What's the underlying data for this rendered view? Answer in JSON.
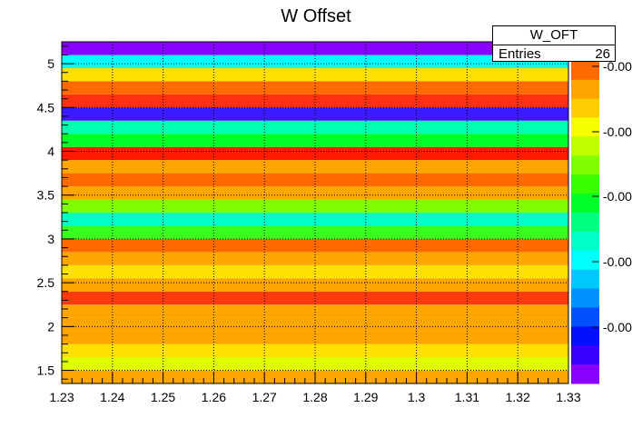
{
  "chart_data": {
    "type": "heatmap",
    "title": "W Offset",
    "x_range": [
      1.23,
      1.33
    ],
    "y_range": [
      1.35,
      5.25
    ],
    "x_ticks": [
      "1.23",
      "1.24",
      "1.25",
      "1.26",
      "1.27",
      "1.28",
      "1.29",
      "1.3",
      "1.31",
      "1.32",
      "1.33"
    ],
    "y_ticks": [
      "1.5",
      "2",
      "2.5",
      "3",
      "3.5",
      "4",
      "4.5",
      "5"
    ],
    "y_tick_values": [
      1.5,
      2,
      2.5,
      3,
      3.5,
      4,
      4.5,
      5
    ],
    "grid": true,
    "rows": [
      {
        "y": [
          1.35,
          1.5
        ],
        "color": "#ffa500"
      },
      {
        "y": [
          1.5,
          1.65
        ],
        "color": "#dfff00"
      },
      {
        "y": [
          1.65,
          1.8
        ],
        "color": "#ffe000"
      },
      {
        "y": [
          1.8,
          1.95
        ],
        "color": "#ffa500"
      },
      {
        "y": [
          1.95,
          2.1
        ],
        "color": "#ffa500"
      },
      {
        "y": [
          2.1,
          2.25
        ],
        "color": "#ffa500"
      },
      {
        "y": [
          2.25,
          2.4
        ],
        "color": "#ff3a10"
      },
      {
        "y": [
          2.4,
          2.55
        ],
        "color": "#ffa500"
      },
      {
        "y": [
          2.55,
          2.7
        ],
        "color": "#ffe000"
      },
      {
        "y": [
          2.7,
          2.85
        ],
        "color": "#ffa500"
      },
      {
        "y": [
          2.85,
          3.0
        ],
        "color": "#ff6a00"
      },
      {
        "y": [
          3.0,
          3.15
        ],
        "color": "#38ff20"
      },
      {
        "y": [
          3.15,
          3.3
        ],
        "color": "#00ffc8"
      },
      {
        "y": [
          3.3,
          3.45
        ],
        "color": "#80ff00"
      },
      {
        "y": [
          3.45,
          3.6
        ],
        "color": "#ffa500"
      },
      {
        "y": [
          3.6,
          3.75
        ],
        "color": "#ff6a00"
      },
      {
        "y": [
          3.75,
          3.9
        ],
        "color": "#ffa500"
      },
      {
        "y": [
          3.9,
          4.05
        ],
        "color": "#ff1a00"
      },
      {
        "y": [
          4.05,
          4.2
        ],
        "color": "#00ff28"
      },
      {
        "y": [
          4.2,
          4.35
        ],
        "color": "#00ffb0"
      },
      {
        "y": [
          4.35,
          4.5
        ],
        "color": "#3a1aff"
      },
      {
        "y": [
          4.5,
          4.65
        ],
        "color": "#ff3010"
      },
      {
        "y": [
          4.65,
          4.8
        ],
        "color": "#ff6a00"
      },
      {
        "y": [
          4.8,
          4.95
        ],
        "color": "#ffe000"
      },
      {
        "y": [
          4.95,
          5.1
        ],
        "color": "#00ffff"
      },
      {
        "y": [
          5.1,
          5.25
        ],
        "color": "#8a00ff"
      }
    ],
    "palette_top_to_bottom": [
      "#ff2a00",
      "#ff6a00",
      "#ffa500",
      "#ffce00",
      "#f5ff00",
      "#bfff00",
      "#80ff00",
      "#3aff00",
      "#00ff28",
      "#00ff80",
      "#00ffc8",
      "#00ffff",
      "#00c8ff",
      "#0090ff",
      "#0050ff",
      "#0010ff",
      "#3a00ff",
      "#8a00ff"
    ],
    "palette_labels": [
      "-0.00",
      "-0.00",
      "-0.00",
      "-0.00",
      "-0.00"
    ]
  },
  "stats": {
    "name": "W_OFT",
    "entries_label": "Entries",
    "entries_value": "26"
  }
}
